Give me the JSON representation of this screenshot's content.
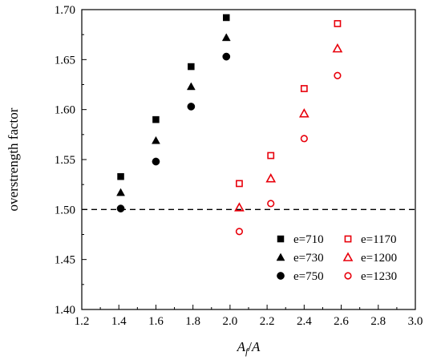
{
  "chart_data": {
    "type": "scatter",
    "xlabel": {
      "base_a": "A",
      "sub_a": "f",
      "slash": "/",
      "base_b": "A",
      "sub_b": "w"
    },
    "ylabel": "overstrength factor",
    "xlim": [
      1.2,
      3.0
    ],
    "ylim": [
      1.4,
      1.7
    ],
    "xticks": [
      "1.2",
      "1.4",
      "1.6",
      "1.8",
      "2.0",
      "2.2",
      "2.4",
      "2.6",
      "2.8",
      "3.0"
    ],
    "yticks": [
      "1.40",
      "1.45",
      "1.50",
      "1.55",
      "1.60",
      "1.65",
      "1.70"
    ],
    "grid": false,
    "reference_line": {
      "y": 1.5,
      "style": "dashed",
      "color": "#000000"
    },
    "legend_position": "bottom-right",
    "colors": {
      "black": "#000000",
      "red": "#e8000b"
    },
    "series": [
      {
        "name": "e=710",
        "marker": "square",
        "filled": true,
        "color": "#000000",
        "x": [
          1.41,
          1.6,
          1.79,
          1.98
        ],
        "y": [
          1.533,
          1.59,
          1.643,
          1.692
        ]
      },
      {
        "name": "e=730",
        "marker": "triangle",
        "filled": true,
        "color": "#000000",
        "x": [
          1.41,
          1.6,
          1.79,
          1.98
        ],
        "y": [
          1.517,
          1.569,
          1.623,
          1.672
        ]
      },
      {
        "name": "e=750",
        "marker": "circle",
        "filled": true,
        "color": "#000000",
        "x": [
          1.41,
          1.6,
          1.79,
          1.98
        ],
        "y": [
          1.501,
          1.548,
          1.603,
          1.653
        ]
      },
      {
        "name": "e=1170",
        "marker": "square",
        "filled": false,
        "color": "#e8000b",
        "x": [
          2.05,
          2.22,
          2.4,
          2.58
        ],
        "y": [
          1.526,
          1.554,
          1.621,
          1.686
        ]
      },
      {
        "name": "e=1200",
        "marker": "triangle",
        "filled": false,
        "color": "#e8000b",
        "x": [
          2.05,
          2.22,
          2.4,
          2.58
        ],
        "y": [
          1.502,
          1.531,
          1.596,
          1.661
        ]
      },
      {
        "name": "e=1230",
        "marker": "circle",
        "filled": false,
        "color": "#e8000b",
        "x": [
          2.05,
          2.22,
          2.4,
          2.58
        ],
        "y": [
          1.478,
          1.506,
          1.571,
          1.634
        ]
      }
    ]
  }
}
